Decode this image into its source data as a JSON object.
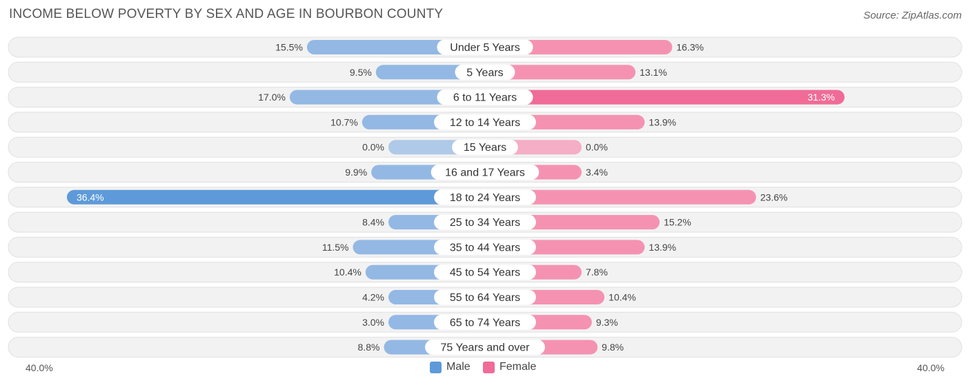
{
  "title": "INCOME BELOW POVERTY BY SEX AND AGE IN BOURBON COUNTY",
  "source": "Source: ZipAtlas.com",
  "colors": {
    "male": "#93b8e4",
    "male_strong": "#5e9ad9",
    "female": "#f592b2",
    "female_strong": "#f06b97",
    "row_bg": "#f2f2f2",
    "row_border": "#e0e0e0"
  },
  "legend": {
    "male_label": "Male",
    "female_label": "Female"
  },
  "axis": {
    "left_label": "40.0%",
    "right_label": "40.0%"
  },
  "chart_data": {
    "type": "bar",
    "orientation": "horizontal-diverging",
    "title": "INCOME BELOW POVERTY BY SEX AND AGE IN BOURBON COUNTY",
    "xlim": [
      -40,
      40
    ],
    "categories": [
      "Under 5 Years",
      "5 Years",
      "6 to 11 Years",
      "12 to 14 Years",
      "15 Years",
      "16 and 17 Years",
      "18 to 24 Years",
      "25 to 34 Years",
      "35 to 44 Years",
      "45 to 54 Years",
      "55 to 64 Years",
      "65 to 74 Years",
      "75 Years and over"
    ],
    "series": [
      {
        "name": "Male",
        "values": [
          15.5,
          9.5,
          17.0,
          10.7,
          0.0,
          9.9,
          36.4,
          8.4,
          11.5,
          10.4,
          4.2,
          3.0,
          8.8
        ],
        "labels": [
          "15.5%",
          "9.5%",
          "17.0%",
          "10.7%",
          "0.0%",
          "9.9%",
          "36.4%",
          "8.4%",
          "11.5%",
          "10.4%",
          "4.2%",
          "3.0%",
          "8.8%"
        ]
      },
      {
        "name": "Female",
        "values": [
          16.3,
          13.1,
          31.3,
          13.9,
          0.0,
          3.4,
          23.6,
          15.2,
          13.9,
          7.8,
          10.4,
          9.3,
          9.8
        ],
        "labels": [
          "16.3%",
          "13.1%",
          "31.3%",
          "13.9%",
          "0.0%",
          "3.4%",
          "23.6%",
          "15.2%",
          "13.9%",
          "7.8%",
          "10.4%",
          "9.3%",
          "9.8%"
        ]
      }
    ],
    "legend_position": "bottom-center"
  }
}
